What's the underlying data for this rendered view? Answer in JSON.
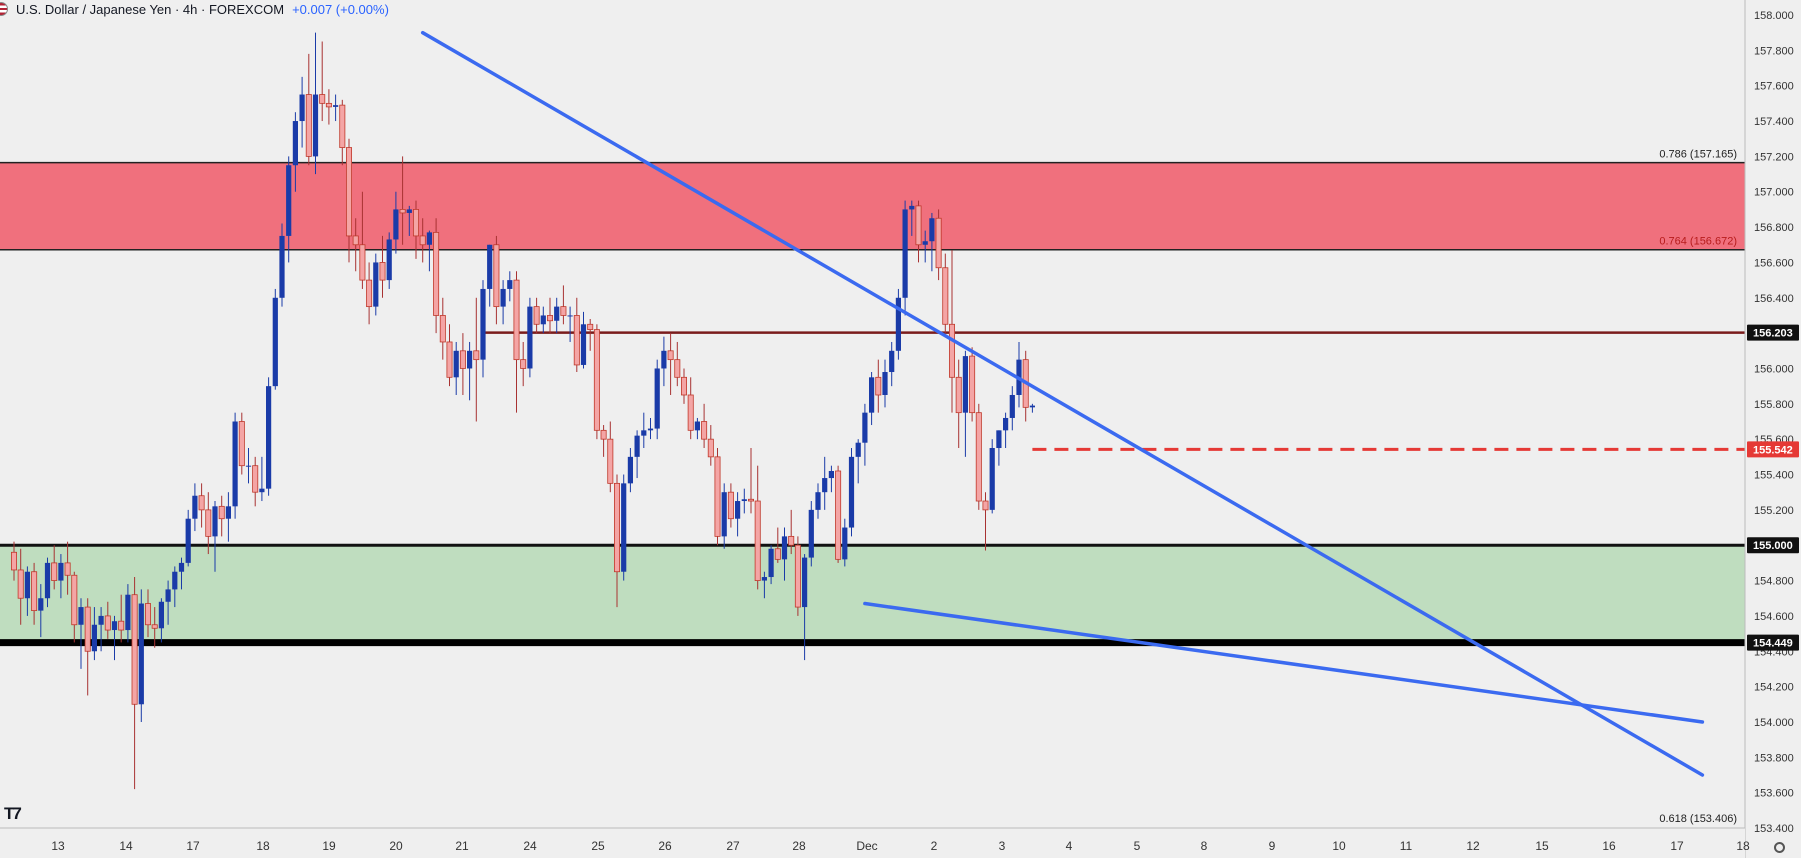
{
  "header": {
    "title": "U.S. Dollar / Japanese Yen · 4h · FOREXCOM",
    "change": "+0.007 (+0.00%)"
  },
  "colors": {
    "bull": "#1a3ba8",
    "bear": "#f4a5a5",
    "bear_outline": "#c0392b",
    "resistance_zone": "#f0707d",
    "support_zone": "#bfddbf",
    "trendline": "#3b6af0",
    "level_dark": "#7a1c1c",
    "level_dashed": "#e53935",
    "badge_red": "#e53935"
  },
  "chart_data": {
    "type": "candlestick",
    "ylim": [
      153.4,
      158.0
    ],
    "y_ticks": [
      "158.000",
      "157.800",
      "157.600",
      "157.400",
      "157.200",
      "157.000",
      "156.800",
      "156.600",
      "156.400",
      "156.200",
      "156.000",
      "155.800",
      "155.600",
      "155.400",
      "155.200",
      "155.000",
      "154.800",
      "154.600",
      "154.400",
      "154.200",
      "154.000",
      "153.800",
      "153.600",
      "153.400"
    ],
    "x_ticks": [
      "13",
      "14",
      "17",
      "18",
      "19",
      "20",
      "21",
      "24",
      "25",
      "26",
      "27",
      "28",
      "Dec",
      "2",
      "3",
      "4",
      "5",
      "8",
      "9",
      "10",
      "11",
      "12",
      "15",
      "16",
      "17",
      "18"
    ],
    "x_slot_range": [
      -8,
      252
    ],
    "zones": [
      {
        "from": 156.672,
        "to": 157.165,
        "kind": "resistance"
      },
      {
        "from": 154.449,
        "to": 155.0,
        "kind": "support"
      }
    ],
    "fib_levels": [
      {
        "label": "0.786 (157.165)",
        "value": 157.165
      },
      {
        "label": "0.764 (156.672)",
        "value": 156.672
      },
      {
        "label": "0.618 (153.406)",
        "value": 153.406
      }
    ],
    "price_badges": [
      {
        "label": "156.203",
        "value": 156.203,
        "style": "dark"
      },
      {
        "label": "155.542",
        "value": 155.542,
        "style": "red"
      },
      {
        "label": "155.000",
        "value": 155.0,
        "style": "dark"
      },
      {
        "label": "154.449",
        "value": 154.449,
        "style": "dark"
      }
    ],
    "horizontal_lines": [
      {
        "value": 156.203,
        "from_slot": 70,
        "style": "solid-dark"
      },
      {
        "value": 155.542,
        "from_slot": 152,
        "style": "dashed-red"
      },
      {
        "value": 155.0,
        "from_slot": -8,
        "style": "solid-black"
      },
      {
        "value": 154.449,
        "from_slot": -8,
        "style": "solid-black-thick"
      }
    ],
    "trendlines": [
      {
        "from": [
          61,
          157.9
        ],
        "to": [
          252,
          153.7
        ]
      },
      {
        "from": [
          127,
          154.67
        ],
        "to": [
          252,
          154.0
        ]
      }
    ],
    "candles": [
      [
        154.96,
        155.02,
        154.8,
        154.86
      ],
      [
        154.86,
        154.98,
        154.55,
        154.7
      ],
      [
        154.7,
        154.88,
        154.6,
        154.85
      ],
      [
        154.85,
        154.9,
        154.55,
        154.63
      ],
      [
        154.63,
        154.78,
        154.48,
        154.7
      ],
      [
        154.7,
        154.93,
        154.65,
        154.9
      ],
      [
        154.9,
        155.0,
        154.75,
        154.8
      ],
      [
        154.8,
        154.95,
        154.7,
        154.9
      ],
      [
        154.9,
        155.02,
        154.72,
        154.83
      ],
      [
        154.83,
        154.85,
        154.45,
        154.55
      ],
      [
        154.55,
        154.7,
        154.3,
        154.65
      ],
      [
        154.65,
        154.7,
        154.15,
        154.4
      ],
      [
        154.4,
        154.65,
        154.35,
        154.55
      ],
      [
        154.55,
        154.65,
        154.4,
        154.6
      ],
      [
        154.6,
        154.68,
        154.47,
        154.52
      ],
      [
        154.52,
        154.6,
        154.35,
        154.57
      ],
      [
        154.57,
        154.72,
        154.45,
        154.52
      ],
      [
        154.52,
        154.78,
        154.45,
        154.72
      ],
      [
        154.72,
        154.82,
        153.62,
        154.1
      ],
      [
        154.1,
        154.75,
        154.0,
        154.67
      ],
      [
        154.67,
        154.75,
        154.48,
        154.55
      ],
      [
        154.55,
        154.65,
        154.42,
        154.53
      ],
      [
        154.53,
        154.7,
        154.45,
        154.68
      ],
      [
        154.68,
        154.8,
        154.55,
        154.75
      ],
      [
        154.75,
        154.88,
        154.65,
        154.85
      ],
      [
        154.85,
        154.93,
        154.75,
        154.9
      ],
      [
        154.9,
        155.2,
        154.88,
        155.15
      ],
      [
        155.15,
        155.35,
        155.08,
        155.28
      ],
      [
        155.28,
        155.35,
        155.1,
        155.2
      ],
      [
        155.2,
        155.3,
        154.95,
        155.05
      ],
      [
        155.05,
        155.25,
        154.85,
        155.22
      ],
      [
        155.22,
        155.28,
        155.05,
        155.15
      ],
      [
        155.15,
        155.3,
        155.02,
        155.22
      ],
      [
        155.22,
        155.75,
        155.15,
        155.7
      ],
      [
        155.7,
        155.75,
        155.4,
        155.45
      ],
      [
        155.45,
        155.55,
        155.35,
        155.45
      ],
      [
        155.45,
        155.5,
        155.22,
        155.3
      ],
      [
        155.3,
        155.5,
        155.25,
        155.32
      ],
      [
        155.32,
        155.95,
        155.28,
        155.9
      ],
      [
        155.9,
        156.45,
        155.88,
        156.4
      ],
      [
        156.4,
        156.82,
        156.35,
        156.75
      ],
      [
        156.75,
        157.2,
        156.6,
        157.15
      ],
      [
        157.15,
        157.45,
        157.0,
        157.4
      ],
      [
        157.4,
        157.65,
        157.25,
        157.55
      ],
      [
        157.55,
        157.78,
        157.15,
        157.2
      ],
      [
        157.2,
        157.9,
        157.1,
        157.55
      ],
      [
        157.55,
        157.85,
        157.4,
        157.5
      ],
      [
        157.5,
        157.58,
        157.38,
        157.48
      ],
      [
        157.48,
        157.55,
        157.4,
        157.49
      ],
      [
        157.49,
        157.52,
        157.15,
        157.25
      ],
      [
        157.25,
        157.3,
        156.6,
        156.75
      ],
      [
        156.75,
        156.85,
        156.55,
        156.7
      ],
      [
        156.7,
        157.0,
        156.45,
        156.5
      ],
      [
        156.5,
        156.6,
        156.25,
        156.35
      ],
      [
        156.35,
        156.65,
        156.3,
        156.6
      ],
      [
        156.6,
        156.75,
        156.4,
        156.5
      ],
      [
        156.5,
        156.77,
        156.45,
        156.73
      ],
      [
        156.73,
        157.0,
        156.65,
        156.9
      ],
      [
        156.9,
        157.2,
        156.7,
        156.88
      ],
      [
        156.88,
        156.92,
        156.75,
        156.9
      ],
      [
        156.9,
        156.95,
        156.62,
        156.75
      ],
      [
        156.75,
        156.85,
        156.6,
        156.7
      ],
      [
        156.7,
        156.78,
        156.55,
        156.77
      ],
      [
        156.77,
        156.85,
        156.2,
        156.3
      ],
      [
        156.3,
        156.4,
        156.05,
        156.15
      ],
      [
        156.15,
        156.25,
        155.9,
        155.95
      ],
      [
        155.95,
        156.15,
        155.85,
        156.1
      ],
      [
        156.1,
        156.2,
        155.85,
        156.0
      ],
      [
        156.0,
        156.15,
        155.82,
        156.1
      ],
      [
        156.1,
        156.4,
        155.7,
        156.05
      ],
      [
        156.05,
        156.5,
        155.95,
        156.45
      ],
      [
        156.45,
        156.7,
        156.35,
        156.7
      ],
      [
        156.7,
        156.75,
        156.25,
        156.35
      ],
      [
        156.35,
        156.5,
        156.25,
        156.45
      ],
      [
        156.45,
        156.55,
        156.38,
        156.5
      ],
      [
        156.5,
        156.55,
        155.75,
        156.05
      ],
      [
        156.05,
        156.15,
        155.9,
        156.0
      ],
      [
        156.0,
        156.4,
        155.95,
        156.35
      ],
      [
        156.35,
        156.4,
        156.2,
        156.25
      ],
      [
        156.25,
        156.35,
        156.2,
        156.3
      ],
      [
        156.3,
        156.4,
        156.2,
        156.27
      ],
      [
        156.27,
        156.4,
        156.2,
        156.35
      ],
      [
        156.35,
        156.47,
        156.25,
        156.3
      ],
      [
        156.3,
        156.35,
        156.15,
        156.3
      ],
      [
        156.3,
        156.4,
        155.98,
        156.02
      ],
      [
        156.02,
        156.32,
        156.0,
        156.25
      ],
      [
        156.25,
        156.28,
        156.1,
        156.22
      ],
      [
        156.22,
        156.25,
        155.6,
        155.65
      ],
      [
        155.65,
        155.68,
        155.5,
        155.6
      ],
      [
        155.6,
        155.7,
        155.3,
        155.35
      ],
      [
        155.35,
        155.4,
        154.65,
        154.85
      ],
      [
        154.85,
        155.4,
        154.8,
        155.35
      ],
      [
        155.35,
        155.55,
        155.3,
        155.5
      ],
      [
        155.5,
        155.65,
        155.38,
        155.62
      ],
      [
        155.62,
        155.75,
        155.55,
        155.65
      ],
      [
        155.65,
        155.72,
        155.6,
        155.66
      ],
      [
        155.66,
        156.05,
        155.6,
        156.0
      ],
      [
        156.0,
        156.18,
        155.9,
        156.1
      ],
      [
        156.1,
        156.2,
        155.85,
        156.05
      ],
      [
        156.05,
        156.15,
        155.9,
        155.95
      ],
      [
        155.95,
        156.0,
        155.8,
        155.85
      ],
      [
        155.85,
        155.95,
        155.6,
        155.65
      ],
      [
        155.65,
        155.72,
        155.6,
        155.7
      ],
      [
        155.7,
        155.8,
        155.55,
        155.6
      ],
      [
        155.6,
        155.68,
        155.45,
        155.5
      ],
      [
        155.5,
        155.55,
        155.0,
        155.05
      ],
      [
        155.05,
        155.35,
        154.98,
        155.3
      ],
      [
        155.3,
        155.35,
        155.1,
        155.15
      ],
      [
        155.15,
        155.3,
        155.05,
        155.25
      ],
      [
        155.25,
        155.32,
        155.18,
        155.26
      ],
      [
        155.26,
        155.55,
        155.18,
        155.25
      ],
      [
        155.25,
        155.45,
        154.75,
        154.8
      ],
      [
        154.8,
        154.85,
        154.7,
        154.82
      ],
      [
        154.82,
        155.0,
        154.78,
        154.98
      ],
      [
        154.98,
        155.1,
        154.9,
        154.92
      ],
      [
        154.92,
        155.1,
        154.8,
        155.05
      ],
      [
        155.05,
        155.2,
        154.95,
        155.0
      ],
      [
        155.0,
        155.05,
        154.6,
        154.65
      ],
      [
        154.65,
        154.95,
        154.35,
        154.93
      ],
      [
        154.93,
        155.25,
        154.88,
        155.2
      ],
      [
        155.2,
        155.35,
        155.15,
        155.3
      ],
      [
        155.3,
        155.5,
        155.2,
        155.38
      ],
      [
        155.38,
        155.45,
        155.3,
        155.42
      ],
      [
        155.42,
        155.45,
        154.9,
        154.92
      ],
      [
        154.92,
        155.15,
        154.88,
        155.1
      ],
      [
        155.1,
        155.55,
        155.05,
        155.5
      ],
      [
        155.5,
        155.6,
        155.35,
        155.58
      ],
      [
        155.58,
        155.8,
        155.45,
        155.75
      ],
      [
        155.75,
        155.98,
        155.68,
        155.95
      ],
      [
        155.95,
        156.05,
        155.75,
        155.85
      ],
      [
        155.85,
        156.05,
        155.78,
        155.98
      ],
      [
        155.98,
        156.15,
        155.9,
        156.1
      ],
      [
        156.1,
        156.45,
        156.05,
        156.4
      ],
      [
        156.4,
        156.95,
        156.3,
        156.9
      ],
      [
        156.9,
        156.95,
        156.75,
        156.92
      ],
      [
        156.92,
        156.95,
        156.6,
        156.7
      ],
      [
        156.7,
        156.78,
        156.6,
        156.72
      ],
      [
        156.72,
        156.88,
        156.55,
        156.85
      ],
      [
        156.85,
        156.9,
        156.5,
        156.57
      ],
      [
        156.57,
        156.65,
        156.2,
        156.25
      ],
      [
        156.25,
        156.67,
        155.75,
        155.95
      ],
      [
        155.95,
        156.05,
        155.55,
        155.75
      ],
      [
        155.75,
        156.1,
        155.5,
        156.07
      ],
      [
        156.07,
        156.12,
        155.7,
        155.75
      ],
      [
        155.75,
        155.8,
        155.2,
        155.25
      ],
      [
        155.25,
        155.3,
        154.97,
        155.2
      ],
      [
        155.2,
        155.6,
        155.18,
        155.55
      ],
      [
        155.55,
        155.65,
        155.45,
        155.65
      ],
      [
        155.65,
        155.75,
        155.55,
        155.72
      ],
      [
        155.72,
        155.9,
        155.65,
        155.85
      ],
      [
        155.85,
        156.15,
        155.78,
        156.05
      ],
      [
        156.05,
        156.1,
        155.7,
        155.78
      ],
      [
        155.78,
        155.8,
        155.75,
        155.79
      ]
    ]
  }
}
